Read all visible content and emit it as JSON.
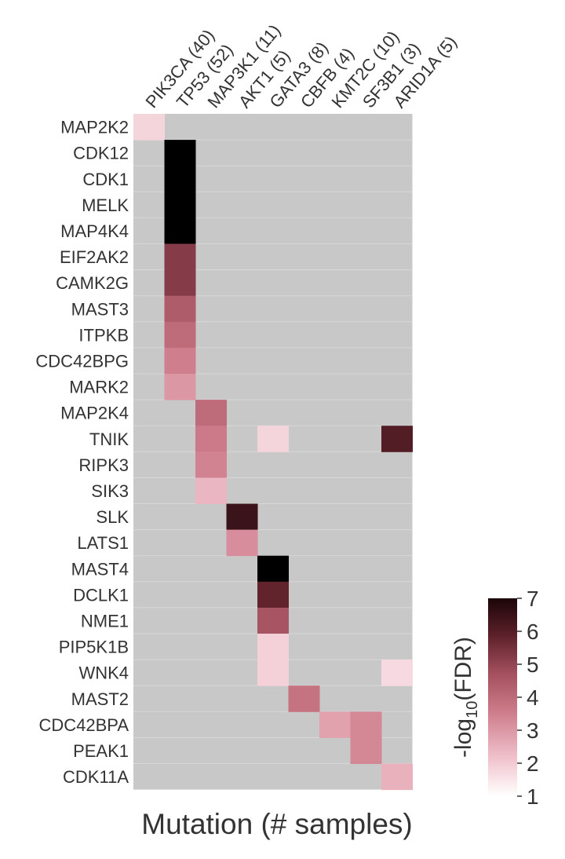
{
  "chart_data": {
    "type": "heatmap",
    "xlabel": "Mutation (# samples)",
    "ylabel": "",
    "columns": [
      "PIK3CA (40)",
      "TP53 (52)",
      "MAP3K1 (11)",
      "AKT1 (5)",
      "GATA3 (8)",
      "CBFB (4)",
      "KMT2C (10)",
      "SF3B1 (3)",
      "ARID1A (5)"
    ],
    "rows": [
      "MAP2K2",
      "CDK12",
      "CDK1",
      "MELK",
      "MAP4K4",
      "EIF2AK2",
      "CAMK2G",
      "MAST3",
      "ITPKB",
      "CDC42BPG",
      "MARK2",
      "MAP2K4",
      "TNIK",
      "RIPK3",
      "SIK3",
      "SLK",
      "LATS1",
      "MAST4",
      "DCLK1",
      "NME1",
      "PIP5K1B",
      "WNK4",
      "MAST2",
      "CDC42BPA",
      "PEAK1",
      "CDK11A"
    ],
    "values": [
      [
        1.8,
        null,
        null,
        null,
        null,
        null,
        null,
        null,
        null
      ],
      [
        null,
        7.0,
        null,
        null,
        null,
        null,
        null,
        null,
        null
      ],
      [
        null,
        7.0,
        null,
        null,
        null,
        null,
        null,
        null,
        null
      ],
      [
        null,
        7.0,
        null,
        null,
        null,
        null,
        null,
        null,
        null
      ],
      [
        null,
        7.0,
        null,
        null,
        null,
        null,
        null,
        null,
        null
      ],
      [
        null,
        5.2,
        null,
        null,
        null,
        null,
        null,
        null,
        null
      ],
      [
        null,
        5.2,
        null,
        null,
        null,
        null,
        null,
        null,
        null
      ],
      [
        null,
        4.4,
        null,
        null,
        null,
        null,
        null,
        null,
        null
      ],
      [
        null,
        4.0,
        null,
        null,
        null,
        null,
        null,
        null,
        null
      ],
      [
        null,
        3.5,
        null,
        null,
        null,
        null,
        null,
        null,
        null
      ],
      [
        null,
        3.0,
        null,
        null,
        null,
        null,
        null,
        null,
        null
      ],
      [
        null,
        null,
        4.0,
        null,
        null,
        null,
        null,
        null,
        null
      ],
      [
        null,
        null,
        3.6,
        null,
        1.8,
        null,
        null,
        null,
        6.0
      ],
      [
        null,
        null,
        3.4,
        null,
        null,
        null,
        null,
        null,
        null
      ],
      [
        null,
        null,
        2.4,
        null,
        null,
        null,
        null,
        null,
        null
      ],
      [
        null,
        null,
        null,
        6.3,
        null,
        null,
        null,
        null,
        null
      ],
      [
        null,
        null,
        null,
        3.2,
        null,
        null,
        null,
        null,
        null
      ],
      [
        null,
        null,
        null,
        null,
        7.0,
        null,
        null,
        null,
        null
      ],
      [
        null,
        null,
        null,
        null,
        5.8,
        null,
        null,
        null,
        null
      ],
      [
        null,
        null,
        null,
        null,
        4.6,
        null,
        null,
        null,
        null
      ],
      [
        null,
        null,
        null,
        null,
        1.9,
        null,
        null,
        null,
        null
      ],
      [
        null,
        null,
        null,
        null,
        1.9,
        null,
        null,
        null,
        1.7
      ],
      [
        null,
        null,
        null,
        null,
        null,
        3.8,
        null,
        null,
        null
      ],
      [
        null,
        null,
        null,
        null,
        null,
        null,
        2.8,
        3.3,
        null
      ],
      [
        null,
        null,
        null,
        null,
        null,
        null,
        null,
        3.3,
        null
      ],
      [
        null,
        null,
        null,
        null,
        null,
        null,
        null,
        null,
        2.5
      ]
    ],
    "colorbar": {
      "label_prefix": "-log",
      "label_sub": "10",
      "label_suffix": "(FDR)",
      "min": 1,
      "max": 7,
      "ticks": [
        1,
        2,
        3,
        4,
        5,
        6,
        7
      ]
    },
    "colors": {
      "missing": "#c8c8c8",
      "scale_low": "#ffffff",
      "scale_mid": "#c06070",
      "scale_high": "#000000"
    }
  }
}
